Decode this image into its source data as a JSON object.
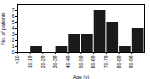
{
  "chart_data": {
    "type": "histogram",
    "xlabel": "Age (y)",
    "ylabel": "No. of patients",
    "bins": [
      0,
      10,
      20,
      30,
      40,
      50,
      60,
      70,
      80,
      90,
      100
    ],
    "values": [
      0,
      1,
      0,
      1,
      3,
      3,
      7,
      5,
      1,
      4
    ],
    "color": "#1a1a1a",
    "xlim": [
      0,
      100
    ],
    "xticks": [
      {
        "value": 0,
        "label": "<10"
      },
      {
        "value": 10,
        "label": "10-19"
      },
      {
        "value": 20,
        "label": "20-29"
      },
      {
        "value": 30,
        "label": "30-39"
      },
      {
        "value": 40,
        "label": "40-49"
      },
      {
        "value": 50,
        "label": "50-59"
      },
      {
        "value": 60,
        "label": "60-69"
      },
      {
        "value": 70,
        "label": "70-79"
      },
      {
        "value": 80,
        "label": "80-89"
      },
      {
        "value": 90,
        "label": "90-99"
      }
    ],
    "ylim": [
      0,
      8
    ],
    "yticks": [
      0,
      1,
      2,
      3,
      4,
      5,
      6,
      7
    ],
    "grid": false
  }
}
